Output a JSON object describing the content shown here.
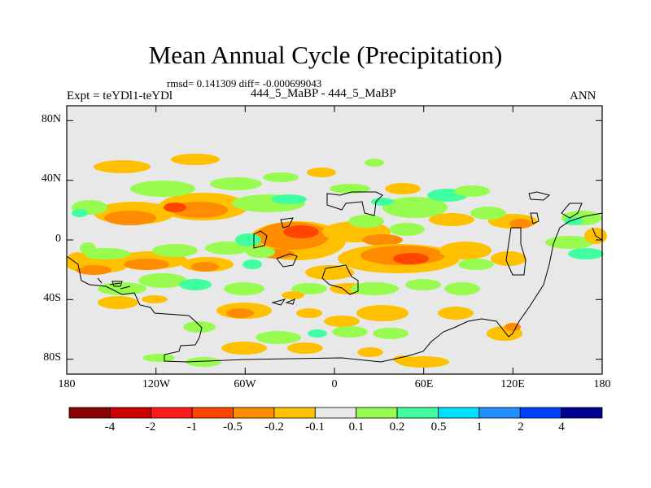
{
  "header": {
    "title": "Mean Annual Cycle (Precipitation)",
    "stats": "rmsd= 0.141309 diff= -0.000699043",
    "experiment": "Expt = teYDl1-teYDl",
    "case": "444_5_MaBP - 444_5_MaBP",
    "season": "ANN"
  },
  "axes": {
    "lat_labels": [
      "80N",
      "40N",
      "0",
      "40S",
      "80S"
    ],
    "lon_labels": [
      "180",
      "120W",
      "60W",
      "0",
      "60E",
      "120E",
      "180"
    ]
  },
  "colorbar": {
    "labels": [
      "-4",
      "-2",
      "-1",
      "-0.5",
      "-0.2",
      "-0.1",
      "0.1",
      "0.2",
      "0.5",
      "1",
      "2",
      "4"
    ],
    "colors": [
      "#8b0000",
      "#cc0000",
      "#ff1a1a",
      "#ff4500",
      "#ff8c00",
      "#ffc000",
      "#e8e8e8",
      "#98fb50",
      "#40ffa0",
      "#00e0ff",
      "#1e90ff",
      "#0040ff",
      "#000090"
    ]
  },
  "map_colors": {
    "background": "#e8e8e8",
    "neg_weak": "#ffc000",
    "neg_mid": "#ff8c00",
    "neg_strong": "#ff4500",
    "pos_weak": "#98fb50",
    "pos_mid": "#40ffa0",
    "pos_strong": "#00e0ff"
  }
}
